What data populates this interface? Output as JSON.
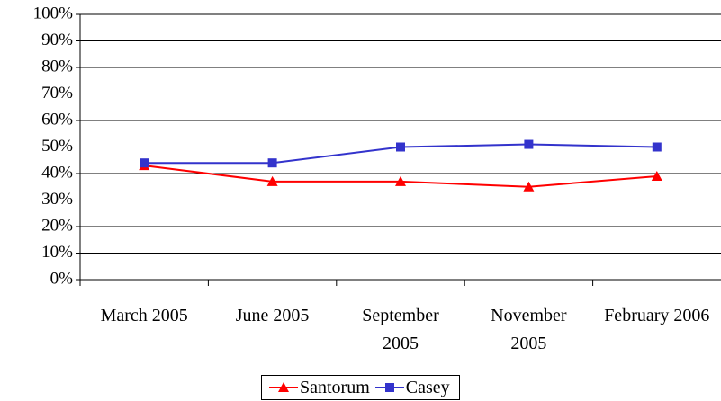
{
  "chart_data": {
    "type": "line",
    "categories": [
      "March 2005",
      "June 2005",
      "September 2005",
      "November 2005",
      "February 2006"
    ],
    "series": [
      {
        "name": "Santorum",
        "color": "#ff0000",
        "marker": "triangle",
        "values": [
          43,
          37,
          37,
          35,
          39
        ]
      },
      {
        "name": "Casey",
        "color": "#3333cc",
        "marker": "square",
        "values": [
          44,
          44,
          50,
          51,
          50
        ]
      }
    ],
    "ylim": [
      0,
      100
    ],
    "yticks": [
      {
        "value": 0,
        "label": "0%"
      },
      {
        "value": 10,
        "label": "10%"
      },
      {
        "value": 20,
        "label": "20%"
      },
      {
        "value": 30,
        "label": "30%"
      },
      {
        "value": 40,
        "label": "40%"
      },
      {
        "value": 50,
        "label": "50%"
      },
      {
        "value": 60,
        "label": "60%"
      },
      {
        "value": 70,
        "label": "70%"
      },
      {
        "value": 80,
        "label": "80%"
      },
      {
        "value": 90,
        "label": "90%"
      },
      {
        "value": 100,
        "label": "100%"
      }
    ],
    "grid": true,
    "legend": "bottom"
  }
}
